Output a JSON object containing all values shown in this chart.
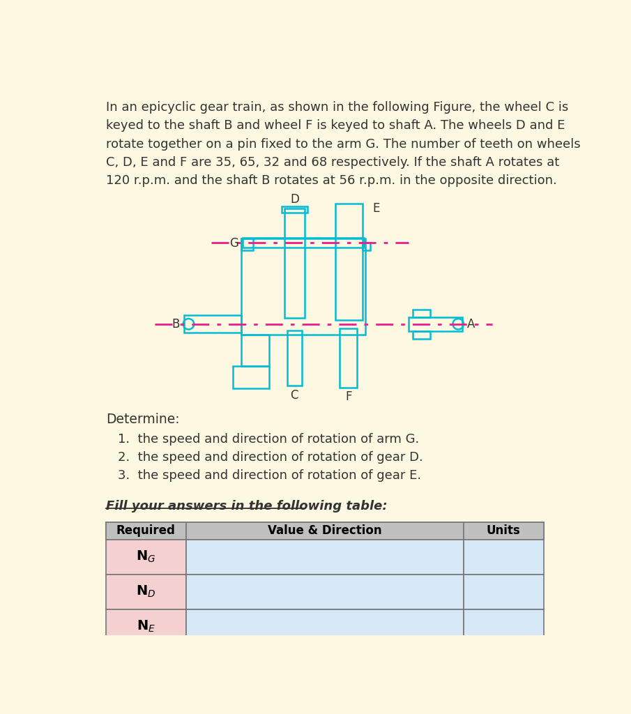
{
  "bg_color": "#fdf8e1",
  "gear_color": "#00bcd4",
  "axis_color": "#e91e8c",
  "text_color": "#333333",
  "lines": [
    "In an epicyclic gear train, as shown in the following Figure, the wheel C is",
    "keyed to the shaft B and wheel F is keyed to shaft A. The wheels D and E",
    "rotate together on a pin fixed to the arm G. The number of teeth on wheels",
    "C, D, E and F are 35, 65, 32 and 68 respectively. If the shaft A rotates at",
    "120 r.p.m. and the shaft B rotates at 56 r.p.m. in the opposite direction."
  ],
  "determine_text": "Determine:",
  "items": [
    "1.  the speed and direction of rotation of arm G.",
    "2.  the speed and direction of rotation of gear D.",
    "3.  the speed and direction of rotation of gear E."
  ],
  "fill_text": "Fill your answers in the following table:",
  "table_headers": [
    "Required",
    "Value & Direction",
    "Units"
  ],
  "row_labels": [
    "N$_G$",
    "N$_D$",
    "N$_E$"
  ],
  "header_bg": "#c0c0c0",
  "row_bg_required": "#f5d0d0",
  "row_bg_value": "#d6e8f5"
}
